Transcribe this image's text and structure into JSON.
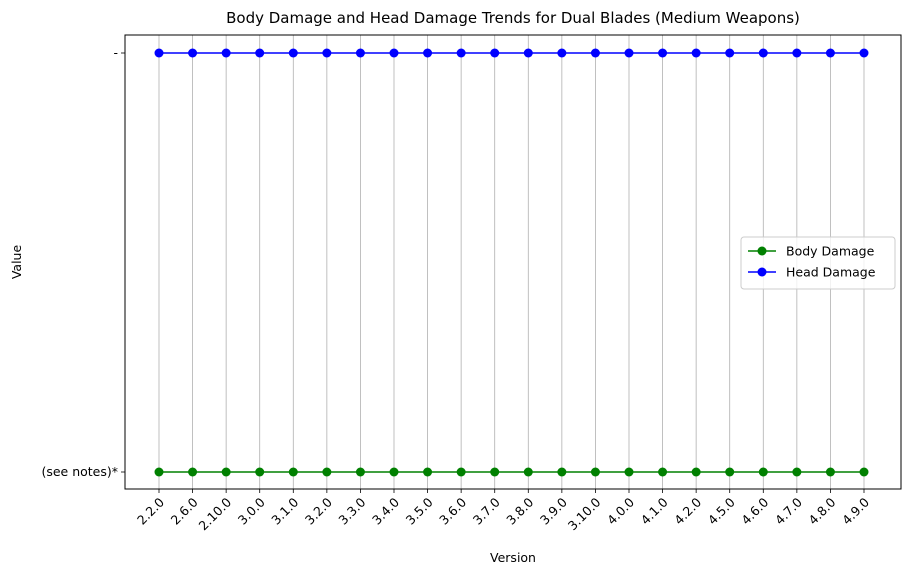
{
  "chart_data": {
    "type": "line",
    "title": "Body Damage and Head Damage Trends for Dual Blades (Medium Weapons)",
    "xlabel": "Version",
    "ylabel": "Value",
    "categories": [
      "2.2.0",
      "2.6.0",
      "2.10.0",
      "3.0.0",
      "3.1.0",
      "3.2.0",
      "3.3.0",
      "3.4.0",
      "3.5.0",
      "3.6.0",
      "3.7.0",
      "3.8.0",
      "3.9.0",
      "3.10.0",
      "4.0.0",
      "4.1.0",
      "4.2.0",
      "4.5.0",
      "4.6.0",
      "4.7.0",
      "4.8.0",
      "4.9.0"
    ],
    "y_categories": [
      "(see notes)*",
      "-"
    ],
    "series": [
      {
        "name": "Body Damage",
        "color": "#008000",
        "values": [
          "(see notes)*",
          "(see notes)*",
          "(see notes)*",
          "(see notes)*",
          "(see notes)*",
          "(see notes)*",
          "(see notes)*",
          "(see notes)*",
          "(see notes)*",
          "(see notes)*",
          "(see notes)*",
          "(see notes)*",
          "(see notes)*",
          "(see notes)*",
          "(see notes)*",
          "(see notes)*",
          "(see notes)*",
          "(see notes)*",
          "(see notes)*",
          "(see notes)*",
          "(see notes)*",
          "(see notes)*"
        ]
      },
      {
        "name": "Head Damage",
        "color": "#0000ff",
        "values": [
          "-",
          "-",
          "-",
          "-",
          "-",
          "-",
          "-",
          "-",
          "-",
          "-",
          "-",
          "-",
          "-",
          "-",
          "-",
          "-",
          "-",
          "-",
          "-",
          "-",
          "-",
          "-"
        ]
      }
    ],
    "grid": "x-only",
    "legend_position": "center-right",
    "x_tick_rotation_deg": 45
  }
}
